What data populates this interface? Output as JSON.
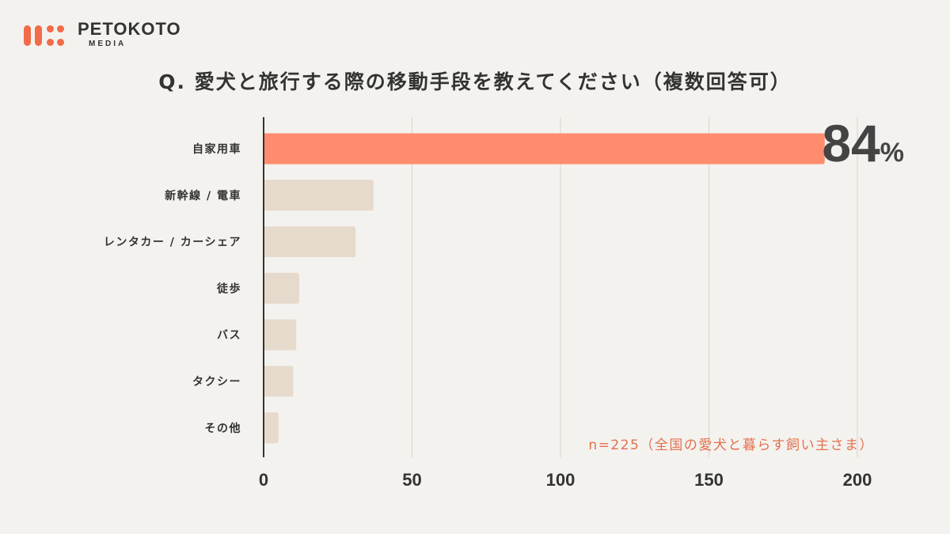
{
  "brand": {
    "name": "PETOKOTO",
    "sub": "MEDIA",
    "color": "#f26b4a"
  },
  "title": "Q. 愛犬と旅行する際の移動手段を教えてください（複数回答可）",
  "highlight": {
    "value": "84",
    "unit": "%"
  },
  "note": "n=225（全国の愛犬と暮らす飼い主さま）",
  "chart_data": {
    "type": "bar",
    "orientation": "horizontal",
    "title": "Q. 愛犬と旅行する際の移動手段を教えてください（複数回答可）",
    "categories": [
      "自家用車",
      "新幹線 / 電車",
      "レンタカー / カーシェア",
      "徒歩",
      "バス",
      "タクシー",
      "その他"
    ],
    "values": [
      189,
      37,
      31,
      12,
      11,
      10,
      5
    ],
    "xlim": [
      0,
      200
    ],
    "xticks": [
      0,
      50,
      100,
      150,
      200
    ],
    "grid": true,
    "highlight_index": 0,
    "colors": {
      "highlight": "#ff8c6e",
      "bar": "#e6dacd",
      "grid": "#d8d4cf",
      "axis": "#333333"
    }
  }
}
